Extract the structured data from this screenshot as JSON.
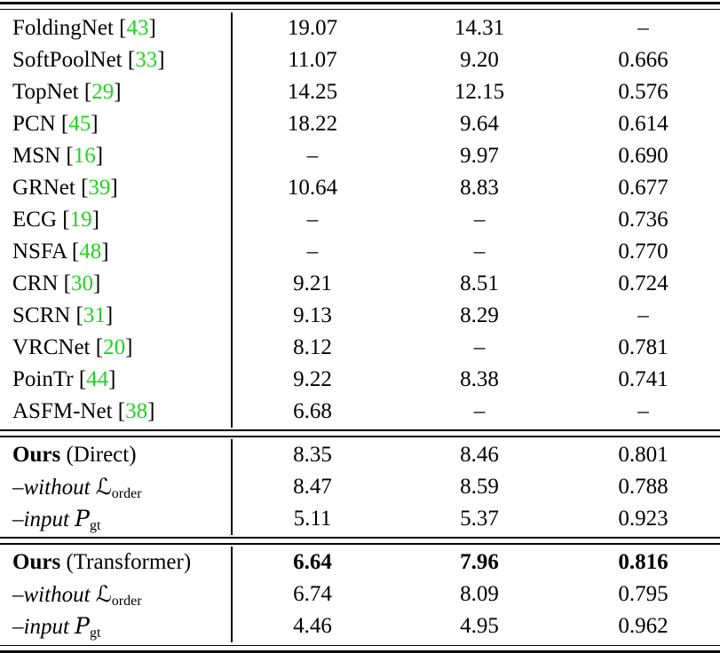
{
  "styles": {
    "citation_color": "#22d322",
    "text_color": "#000000",
    "background_color": "#ffffff"
  },
  "table": {
    "sections": [
      {
        "rows": [
          {
            "label": [
              {
                "t": "FoldingNet [",
                "s": "plain"
              },
              {
                "t": "43",
                "s": "cite"
              },
              {
                "t": "]",
                "s": "plain"
              }
            ],
            "values": [
              "19.07",
              "14.31",
              "–"
            ],
            "values_bold": false
          },
          {
            "label": [
              {
                "t": "SoftPoolNet [",
                "s": "plain"
              },
              {
                "t": "33",
                "s": "cite"
              },
              {
                "t": "]",
                "s": "plain"
              }
            ],
            "values": [
              "11.07",
              "9.20",
              "0.666"
            ],
            "values_bold": false
          },
          {
            "label": [
              {
                "t": "TopNet [",
                "s": "plain"
              },
              {
                "t": "29",
                "s": "cite"
              },
              {
                "t": "]",
                "s": "plain"
              }
            ],
            "values": [
              "14.25",
              "12.15",
              "0.576"
            ],
            "values_bold": false
          },
          {
            "label": [
              {
                "t": "PCN [",
                "s": "plain"
              },
              {
                "t": "45",
                "s": "cite"
              },
              {
                "t": "]",
                "s": "plain"
              }
            ],
            "values": [
              "18.22",
              "9.64",
              "0.614"
            ],
            "values_bold": false
          },
          {
            "label": [
              {
                "t": "MSN [",
                "s": "plain"
              },
              {
                "t": "16",
                "s": "cite"
              },
              {
                "t": "]",
                "s": "plain"
              }
            ],
            "values": [
              "–",
              "9.97",
              "0.690"
            ],
            "values_bold": false
          },
          {
            "label": [
              {
                "t": "GRNet [",
                "s": "plain"
              },
              {
                "t": "39",
                "s": "cite"
              },
              {
                "t": "]",
                "s": "plain"
              }
            ],
            "values": [
              "10.64",
              "8.83",
              "0.677"
            ],
            "values_bold": false
          },
          {
            "label": [
              {
                "t": "ECG [",
                "s": "plain"
              },
              {
                "t": "19",
                "s": "cite"
              },
              {
                "t": "]",
                "s": "plain"
              }
            ],
            "values": [
              "–",
              "–",
              "0.736"
            ],
            "values_bold": false
          },
          {
            "label": [
              {
                "t": "NSFA [",
                "s": "plain"
              },
              {
                "t": "48",
                "s": "cite"
              },
              {
                "t": "]",
                "s": "plain"
              }
            ],
            "values": [
              "–",
              "–",
              "0.770"
            ],
            "values_bold": false
          },
          {
            "label": [
              {
                "t": "CRN [",
                "s": "plain"
              },
              {
                "t": "30",
                "s": "cite"
              },
              {
                "t": "]",
                "s": "plain"
              }
            ],
            "values": [
              "9.21",
              "8.51",
              "0.724"
            ],
            "values_bold": false
          },
          {
            "label": [
              {
                "t": "SCRN [",
                "s": "plain"
              },
              {
                "t": "31",
                "s": "cite"
              },
              {
                "t": "]",
                "s": "plain"
              }
            ],
            "values": [
              "9.13",
              "8.29",
              "–"
            ],
            "values_bold": false
          },
          {
            "label": [
              {
                "t": "VRCNet [",
                "s": "plain"
              },
              {
                "t": "20",
                "s": "cite"
              },
              {
                "t": "]",
                "s": "plain"
              }
            ],
            "values": [
              "8.12",
              "–",
              "0.781"
            ],
            "values_bold": false
          },
          {
            "label": [
              {
                "t": "PoinTr [",
                "s": "plain"
              },
              {
                "t": "44",
                "s": "cite"
              },
              {
                "t": "]",
                "s": "plain"
              }
            ],
            "values": [
              "9.22",
              "8.38",
              "0.741"
            ],
            "values_bold": false
          },
          {
            "label": [
              {
                "t": "ASFM-Net [",
                "s": "plain"
              },
              {
                "t": "38",
                "s": "cite"
              },
              {
                "t": "]",
                "s": "plain"
              }
            ],
            "values": [
              "6.68",
              "–",
              "–"
            ],
            "values_bold": false
          }
        ]
      },
      {
        "rows": [
          {
            "label": [
              {
                "t": "Ours",
                "s": "bold"
              },
              {
                "t": " (Direct)",
                "s": "plain"
              }
            ],
            "values": [
              "8.35",
              "8.46",
              "0.801"
            ],
            "values_bold": false
          },
          {
            "label": [
              {
                "t": "–without ",
                "s": "italic"
              },
              {
                "t": "ℒ",
                "s": "script"
              },
              {
                "t": "order",
                "s": "sub"
              }
            ],
            "values": [
              "8.47",
              "8.59",
              "0.788"
            ],
            "values_bold": false
          },
          {
            "label": [
              {
                "t": "–input ",
                "s": "italic"
              },
              {
                "t": "P",
                "s": "scriptp"
              },
              {
                "t": "gt",
                "s": "sub"
              }
            ],
            "values": [
              "5.11",
              "5.37",
              "0.923"
            ],
            "values_bold": false
          }
        ]
      },
      {
        "rows": [
          {
            "label": [
              {
                "t": "Ours",
                "s": "bold"
              },
              {
                "t": " (Transformer)",
                "s": "plain"
              }
            ],
            "values": [
              "6.64",
              "7.96",
              "0.816"
            ],
            "values_bold": true
          },
          {
            "label": [
              {
                "t": "–without ",
                "s": "italic"
              },
              {
                "t": "ℒ",
                "s": "script"
              },
              {
                "t": "order",
                "s": "sub"
              }
            ],
            "values": [
              "6.74",
              "8.09",
              "0.795"
            ],
            "values_bold": false
          },
          {
            "label": [
              {
                "t": "–input ",
                "s": "italic"
              },
              {
                "t": "P",
                "s": "scriptp"
              },
              {
                "t": "gt",
                "s": "sub"
              }
            ],
            "values": [
              "4.46",
              "4.95",
              "0.962"
            ],
            "values_bold": false
          }
        ]
      }
    ]
  }
}
